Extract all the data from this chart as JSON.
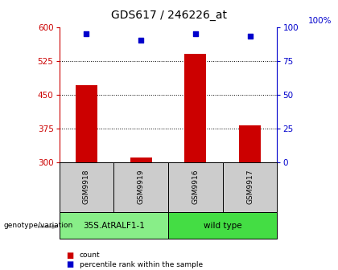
{
  "title": "GDS617 / 246226_at",
  "samples": [
    "GSM9918",
    "GSM9919",
    "GSM9916",
    "GSM9917"
  ],
  "counts": [
    470,
    310,
    540,
    382
  ],
  "percentiles": [
    95,
    90,
    95,
    93
  ],
  "ylim_left": [
    300,
    600
  ],
  "ylim_right": [
    0,
    100
  ],
  "yticks_left": [
    300,
    375,
    450,
    525,
    600
  ],
  "yticks_right": [
    0,
    25,
    50,
    75,
    100
  ],
  "bar_color": "#cc0000",
  "dot_color": "#0000cc",
  "bar_bottom": 300,
  "genotype_groups": [
    {
      "label": "35S.AtRALF1-1",
      "indices": [
        0,
        1
      ],
      "color": "#88ee88"
    },
    {
      "label": "wild type",
      "indices": [
        2,
        3
      ],
      "color": "#44dd44"
    }
  ],
  "left_axis_color": "#cc0000",
  "right_axis_color": "#0000cc",
  "legend_items": [
    {
      "label": "count",
      "color": "#cc0000"
    },
    {
      "label": "percentile rank within the sample",
      "color": "#0000cc"
    }
  ],
  "sample_box_color": "#cccccc",
  "genotype_label": "genotype/variation",
  "pct_label": "100%"
}
